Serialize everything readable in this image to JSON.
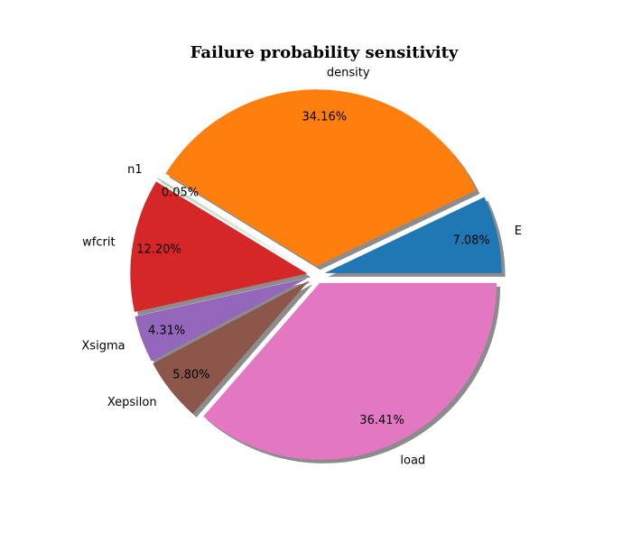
{
  "chart_data": {
    "type": "pie",
    "title": "Failure probability sensitivity",
    "start_angle_deg": 0,
    "direction": "counterclockwise",
    "shadow": true,
    "slices": [
      {
        "label": "E",
        "value": 7.08,
        "pct_label": "7.08%",
        "color": "#1f77b4",
        "explode": 0.05
      },
      {
        "label": "density",
        "value": 34.16,
        "pct_label": "34.16%",
        "color": "#ff7f0e",
        "explode": 0.05
      },
      {
        "label": "n1",
        "value": 0.05,
        "pct_label": "0.05%",
        "color": "#2ca02c",
        "explode": 0.05
      },
      {
        "label": "wfcrit",
        "value": 12.2,
        "pct_label": "12.20%",
        "color": "#d62728",
        "explode": 0.05
      },
      {
        "label": "Xsigma",
        "value": 4.31,
        "pct_label": "4.31%",
        "color": "#9467bd",
        "explode": 0.05
      },
      {
        "label": "Xepsilon",
        "value": 5.8,
        "pct_label": "5.80%",
        "color": "#8c564b",
        "explode": 0.05
      },
      {
        "label": "load",
        "value": 36.41,
        "pct_label": "36.41%",
        "color": "#e377c2",
        "explode": 0.05
      }
    ]
  }
}
